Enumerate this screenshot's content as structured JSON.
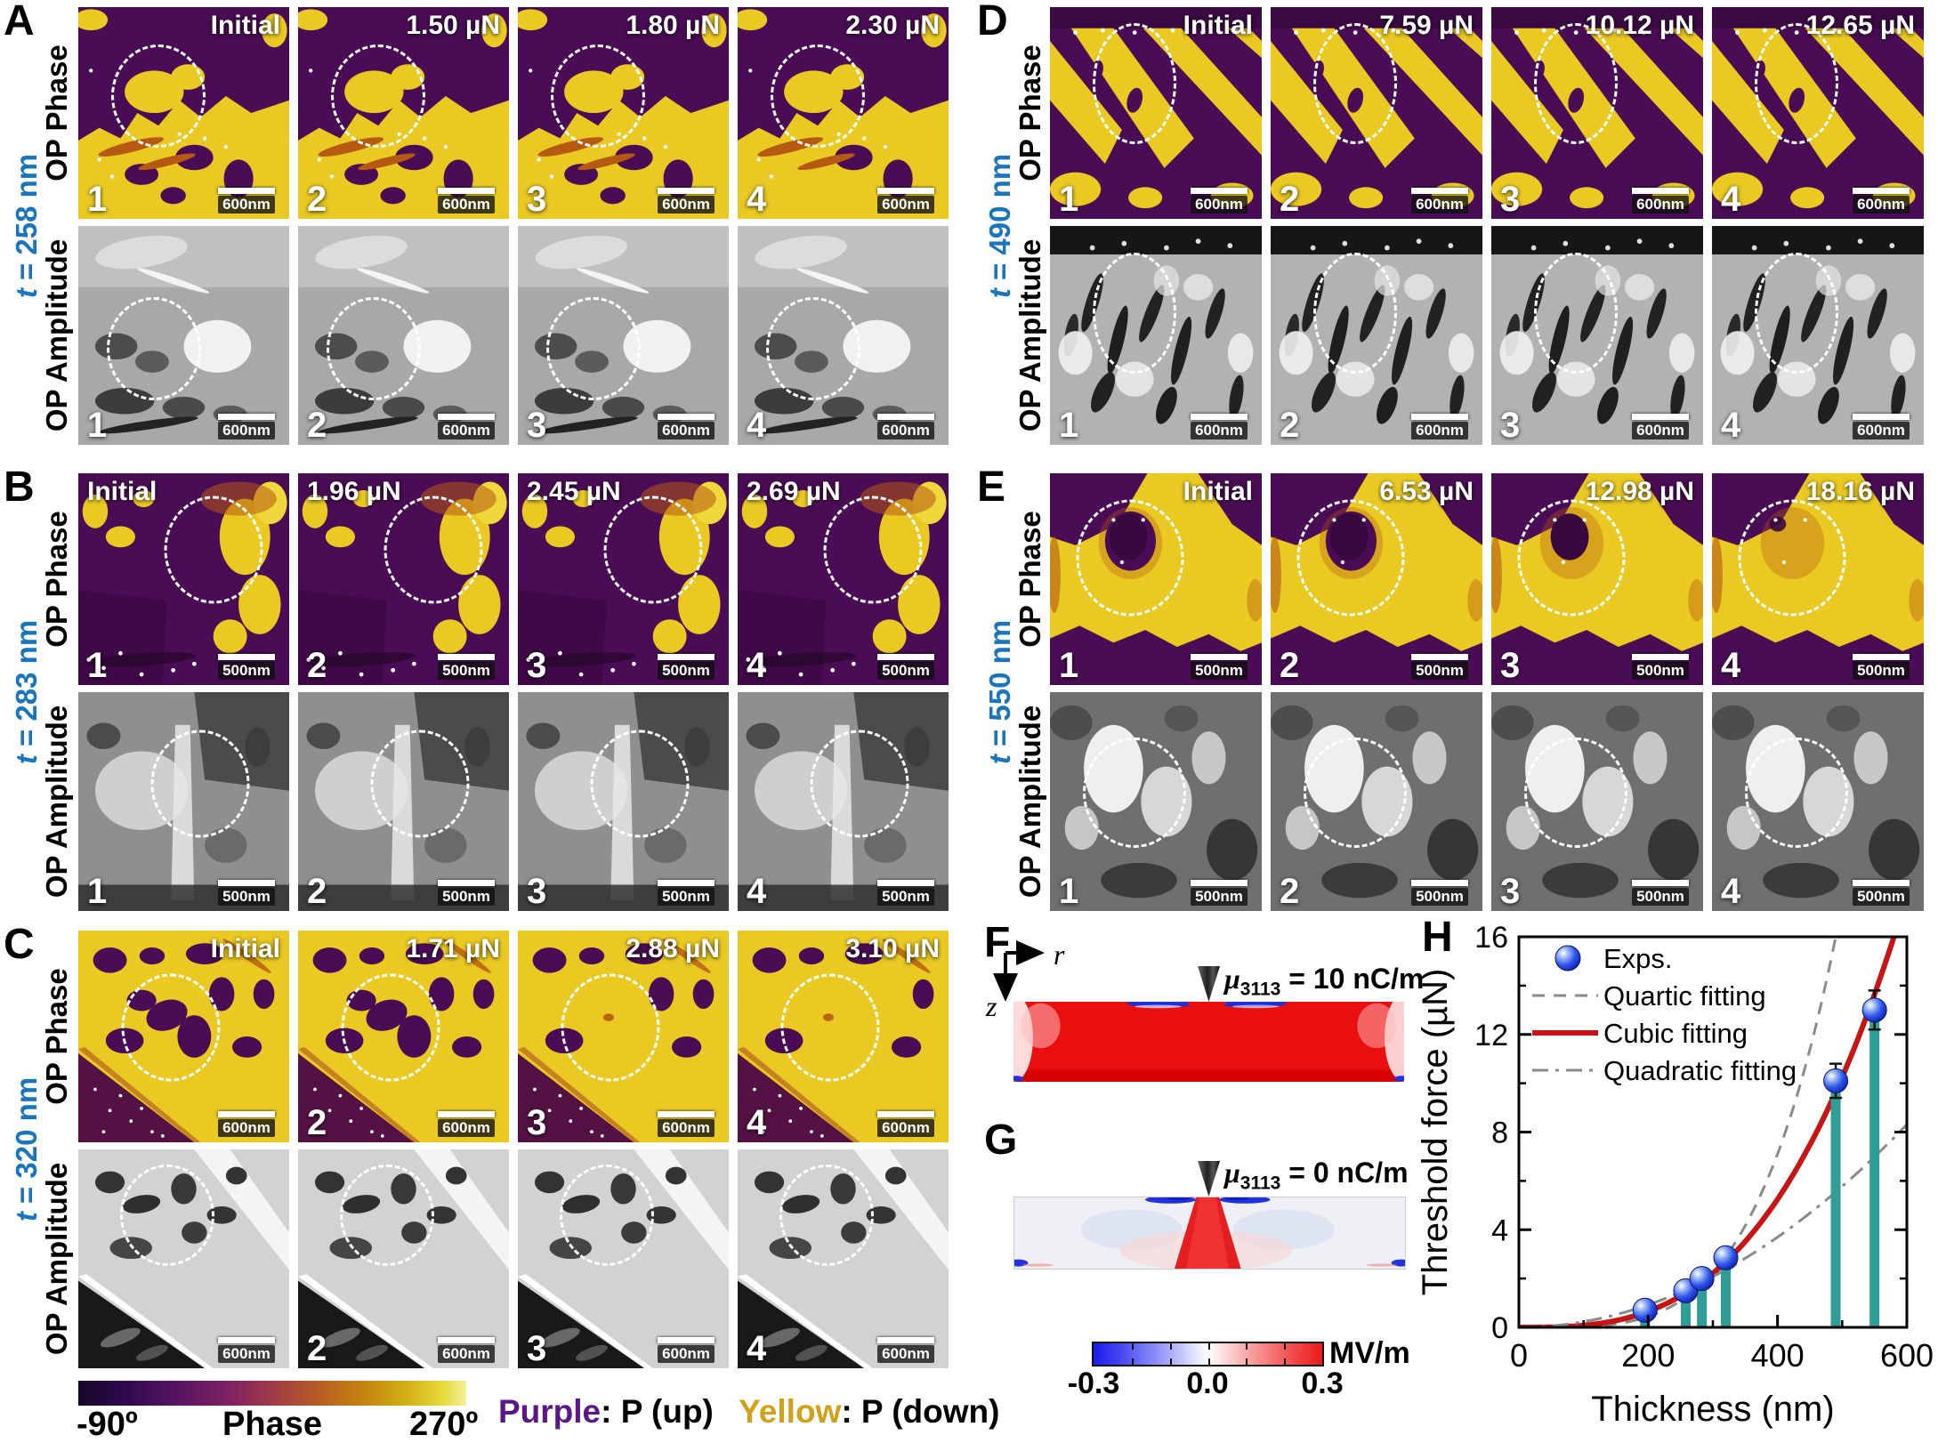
{
  "figure": {
    "rows": [
      "OP Phase",
      "OP Amplitude"
    ],
    "panels": [
      {
        "id": "A",
        "letter": "A",
        "t_sym": "t",
        "t_val": "= 258 nm",
        "scalebar": "600nm",
        "labels": [
          "Initial",
          "1.50 µN",
          "1.80 µN",
          "2.30 µN"
        ],
        "numbers": [
          "1",
          "2",
          "3",
          "4"
        ],
        "label_side": "right"
      },
      {
        "id": "B",
        "letter": "B",
        "t_sym": "t",
        "t_val": "= 283 nm",
        "scalebar": "500nm",
        "labels": [
          "Initial",
          "1.96 µN",
          "2.45 µN",
          "2.69 µN"
        ],
        "numbers": [
          "1",
          "2",
          "3",
          "4"
        ],
        "label_side": "left"
      },
      {
        "id": "C",
        "letter": "C",
        "t_sym": "t",
        "t_val": "= 320 nm",
        "scalebar": "600nm",
        "labels": [
          "Initial",
          "1.71 µN",
          "2.88 µN",
          "3.10 µN"
        ],
        "numbers": [
          "",
          "2",
          "3",
          "4"
        ],
        "label_side": "right"
      },
      {
        "id": "D",
        "letter": "D",
        "t_sym": "t",
        "t_val": "= 490 nm",
        "scalebar": "600nm",
        "labels": [
          "Initial",
          "7.59 µN",
          "10.12 µN",
          "12.65 µN"
        ],
        "numbers": [
          "1",
          "2",
          "3",
          "4"
        ],
        "label_side": "right"
      },
      {
        "id": "E",
        "letter": "E",
        "t_sym": "t",
        "t_val": "= 550 nm",
        "scalebar": "500nm",
        "labels": [
          "Initial",
          "6.53 µN",
          "12.98 µN",
          "18.16 µN"
        ],
        "numbers": [
          "1",
          "2",
          "3",
          "4"
        ],
        "label_side": "right"
      }
    ],
    "sim": {
      "F": {
        "letter": "F",
        "mu": "μ",
        "sub": "3113",
        "val": "= 10 nC/m"
      },
      "G": {
        "letter": "G",
        "mu": "μ",
        "sub": "3113",
        "val": "= 0 nC/m"
      },
      "axis_r": "r",
      "axis_z": "z",
      "cbar": {
        "ticks": [
          "-0.3",
          "0.0",
          "0.3"
        ],
        "unit": "MV/m"
      }
    },
    "H_letter": "H",
    "phase_cbar": {
      "min": "-90º",
      "label": "Phase",
      "max": "270º"
    },
    "polar_legend": {
      "purple_word": "Purple",
      "purple_rest": ": P (up)",
      "yellow_word": "Yellow",
      "yellow_rest": ": P (down)",
      "purple_color": "#5b1687",
      "yellow_color": "#d1a11a"
    }
  },
  "chart_data": {
    "type": "scatter",
    "title": "",
    "xlabel": "Thickness (nm)",
    "ylabel": "Threshold force (µN)",
    "xlim": [
      0,
      600
    ],
    "ylim": [
      0,
      16
    ],
    "xticks": [
      0,
      200,
      400,
      600
    ],
    "yticks": [
      0,
      4,
      8,
      12,
      16
    ],
    "xminor": [
      100,
      300,
      500
    ],
    "yminor": [
      2,
      6,
      10,
      14
    ],
    "points": {
      "label": "Exps.",
      "marker": "blue-sphere",
      "x": [
        195,
        258,
        283,
        320,
        490,
        550
      ],
      "y": [
        0.7,
        1.5,
        2.0,
        2.85,
        10.1,
        13.0
      ],
      "yerr": [
        0.15,
        0.2,
        0.2,
        0.3,
        0.7,
        0.8
      ]
    },
    "stem_bars": {
      "color": "#2f9e96"
    },
    "fits": [
      {
        "label": "Quartic fitting",
        "power": 4,
        "coef": 2.775e-10,
        "style": "dashed",
        "color": "#8a8a8a"
      },
      {
        "label": "Cubic fitting",
        "power": 3,
        "coef": 8.2e-08,
        "style": "solid",
        "color": "#c81414"
      },
      {
        "label": "Quadratic fitting",
        "power": 2,
        "coef": 2.31e-05,
        "style": "dashdot",
        "color": "#8a8a8a"
      }
    ],
    "legend_position": "top-left",
    "grid": false
  }
}
